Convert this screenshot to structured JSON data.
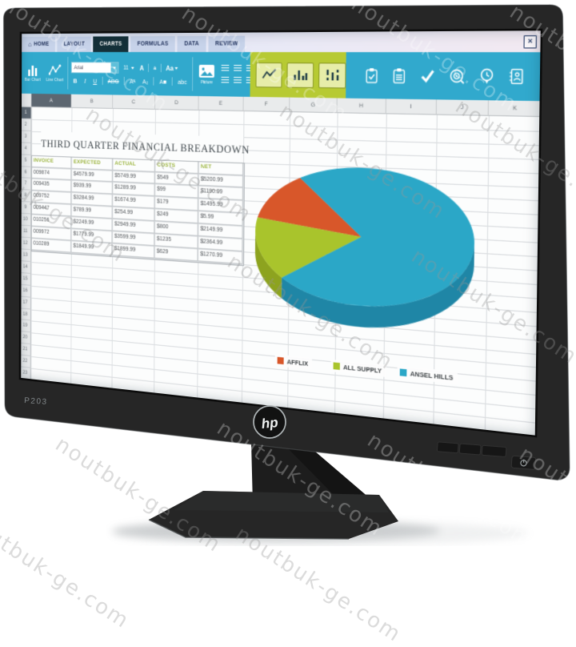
{
  "watermark_text": "noutbuk-ge.com",
  "monitor": {
    "brand_logo": "hp",
    "model": "P203"
  },
  "app": {
    "close_glyph": "×",
    "tabs": [
      {
        "label": "HOME",
        "icon_glyph": "⌂",
        "active": false
      },
      {
        "label": "LAYOUT",
        "active": false
      },
      {
        "label": "CHARTS",
        "active": true
      },
      {
        "label": "FORMULAS",
        "active": false
      },
      {
        "label": "DATA",
        "active": false
      },
      {
        "label": "REVIEW",
        "active": false
      }
    ],
    "ribbon": {
      "chart_tools": [
        {
          "label": "Bar Chart"
        },
        {
          "label": "Line Chart"
        }
      ],
      "font": {
        "family": "Arial",
        "size": "11"
      },
      "format_row1": [
        "A",
        "a",
        "Aa"
      ],
      "format_row2": [
        "B",
        "I",
        "U",
        "ABC",
        "A²",
        "A₂",
        "A■",
        "abc"
      ],
      "picture_label": "Picture",
      "right_icons": [
        "clipboard-check-icon",
        "clipboard-grid-icon",
        "checkmark-icon",
        "target-icon",
        "clock-pin-icon",
        "contact-book-icon"
      ]
    },
    "grid": {
      "columns": [
        "A",
        "B",
        "C",
        "D",
        "E",
        "F",
        "G",
        "H",
        "I",
        "J",
        "K"
      ],
      "row_count": 23,
      "selected_column": "A",
      "selected_row": 1
    },
    "sheet": {
      "title": "THIRD QUARTER FINANCIAL BREAKDOWN",
      "table": {
        "headers": [
          "INVOICE",
          "EXPECTED",
          "ACTUAL",
          "COSTS",
          "NET"
        ],
        "rows": [
          [
            "009874",
            "$4579.99",
            "$5749.99",
            "$549",
            "$5200.99"
          ],
          [
            "009435",
            "$939.99",
            "$1289.99",
            "$99",
            "$1190.99"
          ],
          [
            "009752",
            "$3284.99",
            "$1674.99",
            "$179",
            "$1495.99"
          ],
          [
            "009447",
            "$789.99",
            "$254.99",
            "$249",
            "$5.99"
          ],
          [
            "010256",
            "$2249.99",
            "$2949.99",
            "$800",
            "$2149.99"
          ],
          [
            "009972",
            "$1779.99",
            "$3599.99",
            "$1235",
            "$2364.99"
          ],
          [
            "010289",
            "$1849.99",
            "$1899.99",
            "$629",
            "$1270.99"
          ]
        ]
      }
    }
  },
  "chart_data": {
    "type": "pie",
    "style": "3d",
    "title": "",
    "labels": [
      "AFFLIX",
      "ALL SUPPLY",
      "ANSEL HILLS"
    ],
    "values": [
      12,
      15,
      73
    ],
    "values_unit": "percent_estimated_from_slice_angles",
    "colors": [
      "#d8572a",
      "#a9c42c",
      "#2ba7c7"
    ],
    "side_colors": [
      "#b34420",
      "#8da31f",
      "#1f86a6"
    ],
    "legend_position": "bottom",
    "start_angle_deg": 235,
    "direction": "ccw"
  },
  "colors": {
    "ribbon_teal": "#31a9cd",
    "highlight_green": "#b7ca33",
    "active_tab": "#143039",
    "selected_header": "#5d6771"
  }
}
